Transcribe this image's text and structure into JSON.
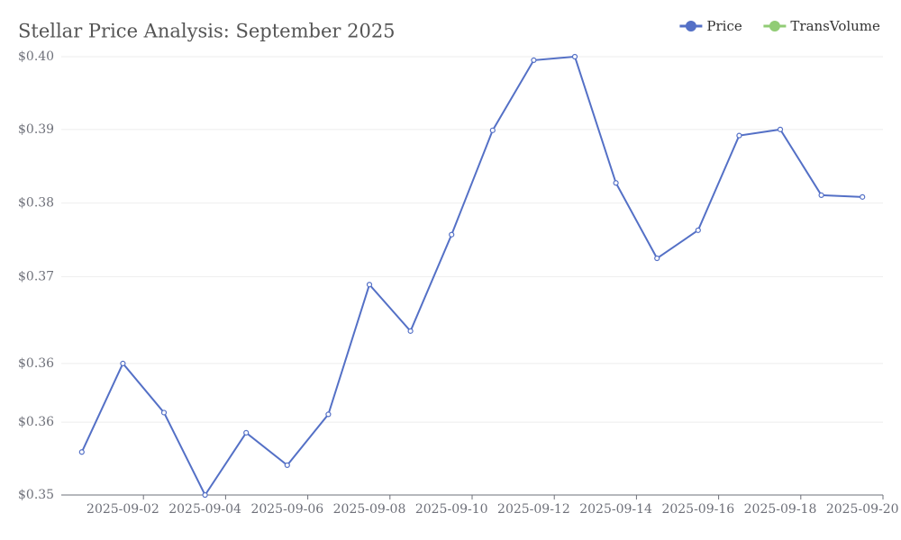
{
  "chart_data": {
    "type": "line",
    "title": "Stellar Price Analysis: September 2025",
    "x": [
      "2025-09-01",
      "2025-09-02",
      "2025-09-03",
      "2025-09-04",
      "2025-09-05",
      "2025-09-06",
      "2025-09-07",
      "2025-09-08",
      "2025-09-09",
      "2025-09-10",
      "2025-09-11",
      "2025-09-12",
      "2025-09-13",
      "2025-09-14",
      "2025-09-15",
      "2025-09-16",
      "2025-09-17",
      "2025-09-18",
      "2025-09-19",
      "2025-09-20"
    ],
    "xticks": [
      "2025-09-02",
      "2025-09-04",
      "2025-09-06",
      "2025-09-08",
      "2025-09-10",
      "2025-09-12",
      "2025-09-14",
      "2025-09-16",
      "2025-09-18",
      "2025-09-20"
    ],
    "series": [
      {
        "name": "Price",
        "color": "#5470c6",
        "values": [
          0.3549,
          0.365,
          0.3594,
          0.35,
          0.3571,
          0.3534,
          0.3592,
          0.374,
          0.3687,
          0.3797,
          0.3916,
          0.3996,
          0.4,
          0.3856,
          0.377,
          0.3802,
          0.391,
          0.3917,
          0.3842,
          0.384
        ]
      },
      {
        "name": "TransVolume",
        "color": "#91cc75",
        "values": [
          null,
          null,
          null,
          null,
          null,
          null,
          null,
          null,
          null,
          null,
          null,
          null,
          null,
          null,
          null,
          null,
          null,
          null,
          null,
          null
        ]
      }
    ],
    "ylim": [
      0.35,
      0.4
    ],
    "yticks": [
      {
        "value": 0.35,
        "label": "$0.35"
      },
      {
        "value": 0.3583,
        "label": "$0.36"
      },
      {
        "value": 0.365,
        "label": "$0.36"
      },
      {
        "value": 0.3749,
        "label": "$0.37"
      },
      {
        "value": 0.3833,
        "label": "$0.38"
      },
      {
        "value": 0.3917,
        "label": "$0.39"
      },
      {
        "value": 0.4,
        "label": "$0.40"
      }
    ],
    "grid": true,
    "legend": "top-right"
  }
}
